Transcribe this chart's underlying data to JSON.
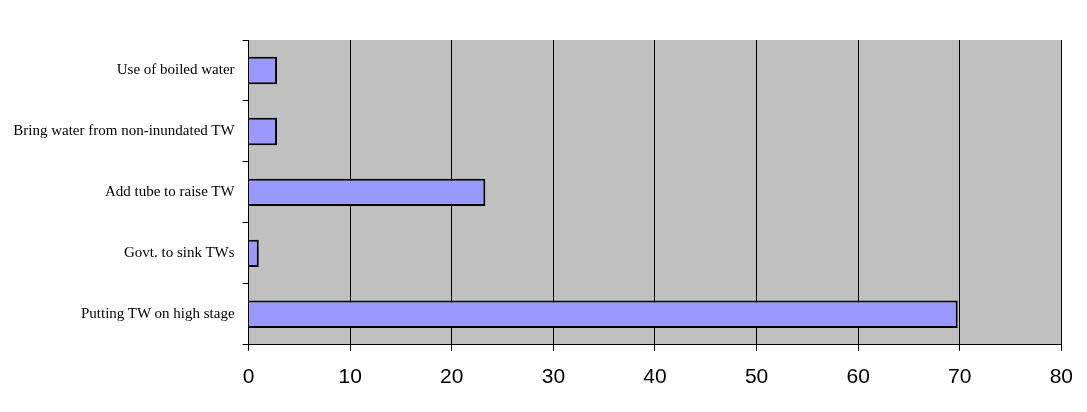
{
  "chart_data": {
    "type": "bar",
    "orientation": "horizontal",
    "categories": [
      "Use of boiled water",
      "Bring water from non-inundated TW",
      "Add tube to raise TW",
      "Govt. to sink TWs",
      "Putting TW on high stage"
    ],
    "values": [
      2.8,
      2.8,
      23.3,
      1.0,
      69.8
    ],
    "color": "#9999ff",
    "xlim": [
      0,
      80
    ],
    "xticks": [
      0,
      10,
      20,
      30,
      40,
      50,
      60,
      70,
      80
    ],
    "grid": "x",
    "legend": false
  }
}
